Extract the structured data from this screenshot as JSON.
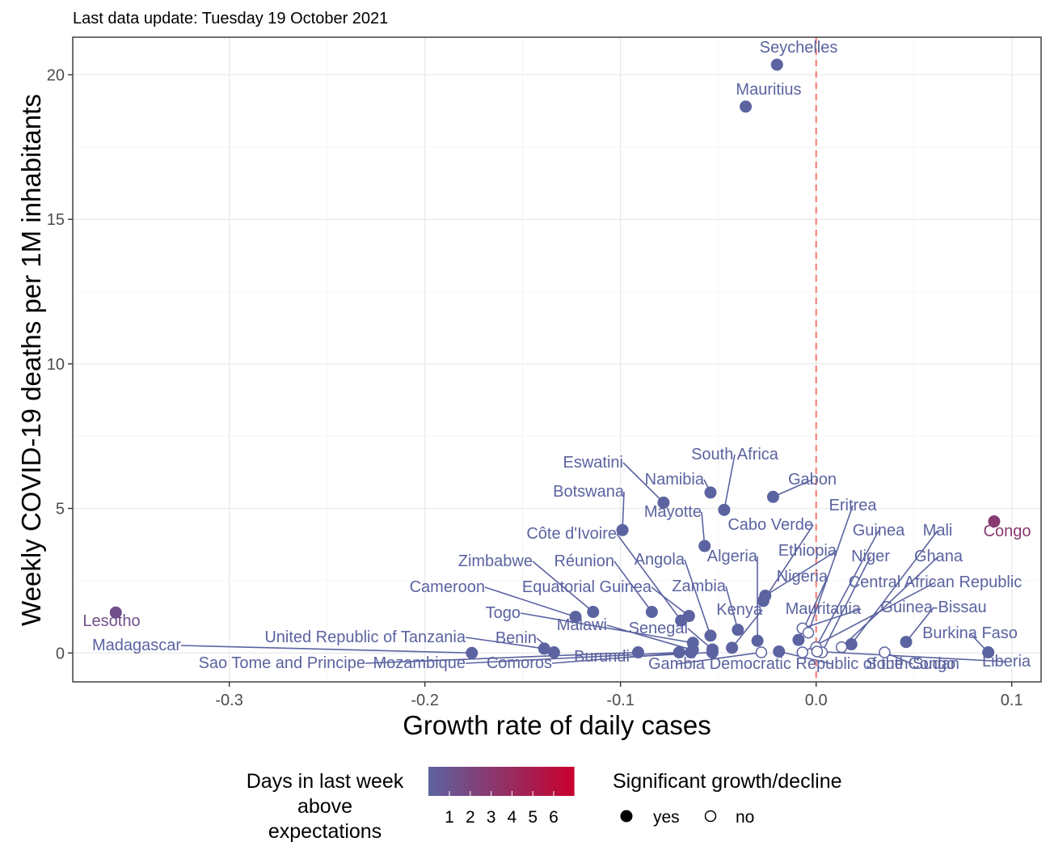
{
  "chart_data": {
    "type": "scatter",
    "subtitle": "Last data update: Tuesday 19 October 2021",
    "xlabel": "Growth rate of daily cases",
    "ylabel": "Weekly COVID-19 deaths per 1M inhabitants",
    "xlim": [
      -0.38,
      0.115
    ],
    "ylim": [
      -1.0,
      21.3
    ],
    "x_ticks": [
      -0.3,
      -0.2,
      -0.1,
      0.0,
      0.1
    ],
    "x_tick_labels": [
      "-0.3",
      "-0.2",
      "-0.1",
      "0.0",
      "0.1"
    ],
    "y_ticks": [
      0,
      5,
      10,
      15,
      20
    ],
    "y_tick_labels": [
      "0",
      "5",
      "10",
      "15",
      "20"
    ],
    "reference_line": {
      "x": 0.0,
      "style": "dashed",
      "color": "#f8766d"
    },
    "grid": true,
    "colors": {
      "low": "#5b63a0",
      "mid": "#7b4f7f",
      "high": "#c8002e",
      "reference": "#f8766d"
    },
    "legend_color": {
      "title_lines": [
        "Days in last week",
        "above",
        "expectations"
      ],
      "labels": [
        "1",
        "2",
        "3",
        "4",
        "5",
        "6"
      ],
      "placement": "bottom"
    },
    "legend_shape": {
      "title": "Significant growth/decline",
      "items": [
        {
          "label": "yes",
          "filled": true
        },
        {
          "label": "no",
          "filled": false
        }
      ],
      "placement": "bottom"
    },
    "points": [
      {
        "name": "Seychelles",
        "x": -0.02,
        "y": 20.35,
        "days": 1,
        "significant": true
      },
      {
        "name": "Mauritius",
        "x": -0.036,
        "y": 18.9,
        "days": 1,
        "significant": true
      },
      {
        "name": "Lesotho",
        "x": -0.358,
        "y": 1.4,
        "days": 2,
        "significant": true
      },
      {
        "name": "Congo",
        "x": 0.091,
        "y": 4.55,
        "days": 3,
        "significant": true
      },
      {
        "name": "Madagascar",
        "x": -0.176,
        "y": 0.0,
        "days": 1,
        "significant": true
      },
      {
        "name": "United Republic of Tanzania",
        "x": -0.139,
        "y": 0.15,
        "days": 1,
        "significant": true
      },
      {
        "name": "Benin",
        "x": -0.134,
        "y": 0.02,
        "days": 1,
        "significant": true
      },
      {
        "name": "Sao Tome and Principe",
        "x": -0.091,
        "y": 0.02,
        "days": 1,
        "significant": true
      },
      {
        "name": "Mozambique",
        "x": -0.07,
        "y": 0.02,
        "days": 1,
        "significant": true
      },
      {
        "name": "Comoros",
        "x": -0.064,
        "y": 0.02,
        "days": 1,
        "significant": true
      },
      {
        "name": "Burundi",
        "x": -0.053,
        "y": 0.02,
        "days": 1,
        "significant": true
      },
      {
        "name": "Cameroon",
        "x": -0.123,
        "y": 1.25,
        "days": 1,
        "significant": true
      },
      {
        "name": "Zimbabwe",
        "x": -0.114,
        "y": 1.42,
        "days": 1,
        "significant": true
      },
      {
        "name": "Togo",
        "x": -0.063,
        "y": 0.35,
        "days": 1,
        "significant": true
      },
      {
        "name": "Malawi",
        "x": -0.063,
        "y": 0.1,
        "days": 1,
        "significant": true
      },
      {
        "name": "Senegal",
        "x": -0.053,
        "y": 0.12,
        "days": 1,
        "significant": true
      },
      {
        "name": "Botswana",
        "x": -0.099,
        "y": 4.25,
        "days": 1,
        "significant": true
      },
      {
        "name": "Eswatini",
        "x": -0.078,
        "y": 5.2,
        "days": 1,
        "significant": true
      },
      {
        "name": "Namibia",
        "x": -0.054,
        "y": 5.55,
        "days": 1,
        "significant": true
      },
      {
        "name": "South Africa",
        "x": -0.047,
        "y": 4.95,
        "days": 1,
        "significant": true
      },
      {
        "name": "Gabon",
        "x": -0.022,
        "y": 5.4,
        "days": 1,
        "significant": true
      },
      {
        "name": "Mayotte",
        "x": -0.057,
        "y": 3.7,
        "days": 1,
        "significant": true
      },
      {
        "name": "Côte d'Ivoire",
        "x": -0.069,
        "y": 1.12,
        "days": 1,
        "significant": true
      },
      {
        "name": "Réunion",
        "x": -0.084,
        "y": 1.42,
        "days": 1,
        "significant": true
      },
      {
        "name": "Equatorial Guinea",
        "x": -0.065,
        "y": 1.28,
        "days": 1,
        "significant": true
      },
      {
        "name": "Angola",
        "x": -0.054,
        "y": 0.6,
        "days": 1,
        "significant": true
      },
      {
        "name": "Zambia",
        "x": -0.04,
        "y": 0.8,
        "days": 1,
        "significant": true
      },
      {
        "name": "Kenya",
        "x": -0.043,
        "y": 0.18,
        "days": 1,
        "significant": true
      },
      {
        "name": "Cabo Verde",
        "x": -0.027,
        "y": 1.8,
        "days": 1,
        "significant": true
      },
      {
        "name": "Ethiopia",
        "x": -0.026,
        "y": 1.98,
        "days": 1,
        "significant": true
      },
      {
        "name": "Algeria",
        "x": -0.03,
        "y": 0.42,
        "days": 1,
        "significant": true
      },
      {
        "name": "Nigeria",
        "x": -0.009,
        "y": 0.45,
        "days": 1,
        "significant": true
      },
      {
        "name": "Gambia",
        "x": -0.028,
        "y": 0.02,
        "days": 1,
        "significant": false
      },
      {
        "name": "Mauritania",
        "x": -0.007,
        "y": 0.85,
        "days": 1,
        "significant": false
      },
      {
        "name": "Eritrea",
        "x": -0.004,
        "y": 0.7,
        "days": 1,
        "significant": false
      },
      {
        "name": "Guinea",
        "x": 0.0,
        "y": 0.2,
        "days": 1,
        "significant": false
      },
      {
        "name": "Niger",
        "x": 0.003,
        "y": 0.02,
        "days": 1,
        "significant": false
      },
      {
        "name": "Democratic Republic of the Congo",
        "x": -0.019,
        "y": 0.05,
        "days": 1,
        "significant": true
      },
      {
        "name": "Central African Republic",
        "x": -0.007,
        "y": 0.02,
        "days": 1,
        "significant": false
      },
      {
        "name": "Mali",
        "x": 0.018,
        "y": 0.3,
        "days": 1,
        "significant": true
      },
      {
        "name": "Ghana",
        "x": 0.013,
        "y": 0.2,
        "days": 1,
        "significant": false
      },
      {
        "name": "South Sudan",
        "x": 0.035,
        "y": 0.02,
        "days": 1,
        "significant": false
      },
      {
        "name": "Guinea-Bissau",
        "x": 0.046,
        "y": 0.38,
        "days": 1,
        "significant": true
      },
      {
        "name": "Burkina Faso",
        "x": 0.088,
        "y": 0.02,
        "days": 1,
        "significant": true
      },
      {
        "name": "Liberia",
        "x": 0.0005,
        "y": 0.05,
        "days": 1,
        "significant": false
      }
    ]
  }
}
